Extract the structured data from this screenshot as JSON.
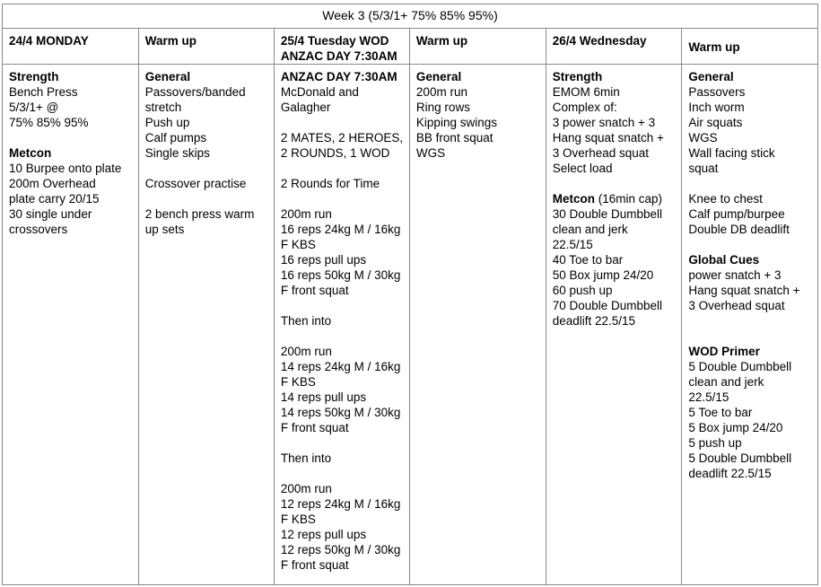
{
  "title": "Week 3 (5/3/1+ 75% 85% 95%)",
  "colors": {
    "border": "#8a8a8a",
    "text": "#000000",
    "background": "#ffffff"
  },
  "table": {
    "headers": [
      {
        "lines": [
          "24/4 MONDAY"
        ]
      },
      {
        "lines": [
          "Warm up"
        ]
      },
      {
        "lines": [
          "25/4 Tuesday WOD",
          "ANZAC DAY 7:30AM"
        ]
      },
      {
        "lines": [
          "Warm up"
        ]
      },
      {
        "lines": [
          "26/4 Wednesday"
        ]
      },
      {
        "lines": [
          "Warm up"
        ]
      }
    ],
    "cells": [
      [
        [
          {
            "t": "Strength",
            "b": true
          }
        ],
        [
          {
            "t": "Bench Press"
          }
        ],
        [
          {
            "t": "5/3/1+ @"
          }
        ],
        [
          {
            "t": "75% 85% 95%"
          }
        ],
        [],
        [
          {
            "t": "Metcon",
            "b": true
          }
        ],
        [
          {
            "t": "10 Burpee onto plate"
          }
        ],
        [
          {
            "t": "200m Overhead"
          }
        ],
        [
          {
            "t": "plate carry 20/15"
          }
        ],
        [
          {
            "t": "30 single under"
          }
        ],
        [
          {
            "t": "crossovers"
          }
        ]
      ],
      [
        [
          {
            "t": "General",
            "b": true
          }
        ],
        [
          {
            "t": "Passovers/banded"
          }
        ],
        [
          {
            "t": "stretch"
          }
        ],
        [
          {
            "t": "Push up"
          }
        ],
        [
          {
            "t": "Calf pumps"
          }
        ],
        [
          {
            "t": "Single skips"
          }
        ],
        [],
        [
          {
            "t": "Crossover practise"
          }
        ],
        [],
        [
          {
            "t": "2 bench press warm"
          }
        ],
        [
          {
            "t": "up sets"
          }
        ]
      ],
      [
        [
          {
            "t": "ANZAC DAY 7:30AM",
            "b": true
          }
        ],
        [
          {
            "t": "McDonald and"
          }
        ],
        [
          {
            "t": "Galagher"
          }
        ],
        [],
        [
          {
            "t": "2 MATES, 2 HEROES,"
          }
        ],
        [
          {
            "t": "2 ROUNDS, 1 WOD"
          }
        ],
        [],
        [
          {
            "t": "2 Rounds for Time"
          }
        ],
        [],
        [
          {
            "t": "200m run"
          }
        ],
        [
          {
            "t": "16 reps 24kg M / 16kg"
          }
        ],
        [
          {
            "t": "F KBS"
          }
        ],
        [
          {
            "t": "16 reps pull ups"
          }
        ],
        [
          {
            "t": "16 reps 50kg M / 30kg"
          }
        ],
        [
          {
            "t": "F front squat"
          }
        ],
        [],
        [
          {
            "t": "Then into"
          }
        ],
        [],
        [
          {
            "t": "200m run"
          }
        ],
        [
          {
            "t": "14 reps 24kg M / 16kg"
          }
        ],
        [
          {
            "t": "F KBS"
          }
        ],
        [
          {
            "t": "14 reps pull ups"
          }
        ],
        [
          {
            "t": "14 reps 50kg M / 30kg"
          }
        ],
        [
          {
            "t": "F front squat"
          }
        ],
        [],
        [
          {
            "t": "Then into"
          }
        ],
        [],
        [
          {
            "t": "200m run"
          }
        ],
        [
          {
            "t": "12 reps 24kg M / 16kg"
          }
        ],
        [
          {
            "t": "F KBS"
          }
        ],
        [
          {
            "t": "12 reps pull ups"
          }
        ],
        [
          {
            "t": "12 reps 50kg M / 30kg"
          }
        ],
        [
          {
            "t": "F front squat"
          }
        ]
      ],
      [
        [
          {
            "t": "General",
            "b": true
          }
        ],
        [
          {
            "t": "200m run"
          }
        ],
        [
          {
            "t": "Ring rows"
          }
        ],
        [
          {
            "t": "Kipping swings"
          }
        ],
        [
          {
            "t": "BB front squat"
          }
        ],
        [
          {
            "t": "WGS"
          }
        ]
      ],
      [
        [
          {
            "t": "Strength",
            "b": true
          }
        ],
        [
          {
            "t": "EMOM 6min"
          }
        ],
        [
          {
            "t": "Complex of:"
          }
        ],
        [
          {
            "t": "3 power snatch + 3"
          }
        ],
        [
          {
            "t": "Hang squat snatch +"
          }
        ],
        [
          {
            "t": "3 Overhead squat"
          }
        ],
        [
          {
            "t": "Select load"
          }
        ],
        [],
        [
          {
            "t": "Metcon",
            "b": true
          },
          {
            "t": " (16min cap)"
          }
        ],
        [
          {
            "t": "30 Double Dumbbell"
          }
        ],
        [
          {
            "t": "clean and jerk"
          }
        ],
        [
          {
            "t": "22.5/15"
          }
        ],
        [
          {
            "t": "40 Toe to bar"
          }
        ],
        [
          {
            "t": "50 Box jump 24/20"
          }
        ],
        [
          {
            "t": "60 push up"
          }
        ],
        [
          {
            "t": "70 Double Dumbbell"
          }
        ],
        [
          {
            "t": "deadlift 22.5/15"
          }
        ]
      ],
      [
        [
          {
            "t": "General",
            "b": true
          }
        ],
        [
          {
            "t": "Passovers"
          }
        ],
        [
          {
            "t": "Inch worm"
          }
        ],
        [
          {
            "t": "Air squats"
          }
        ],
        [
          {
            "t": "WGS"
          }
        ],
        [
          {
            "t": "Wall facing stick"
          }
        ],
        [
          {
            "t": "squat"
          }
        ],
        [],
        [
          {
            "t": "Knee to chest"
          }
        ],
        [
          {
            "t": "Calf pump/burpee"
          }
        ],
        [
          {
            "t": "Double DB deadlift"
          }
        ],
        [],
        [
          {
            "t": "Global Cues",
            "b": true
          }
        ],
        [
          {
            "t": "power snatch + 3"
          }
        ],
        [
          {
            "t": "Hang squat snatch +"
          }
        ],
        [
          {
            "t": "3 Overhead squat"
          }
        ],
        [],
        [],
        [
          {
            "t": "WOD Primer",
            "b": true
          }
        ],
        [
          {
            "t": "5 Double Dumbbell"
          }
        ],
        [
          {
            "t": "clean and jerk"
          }
        ],
        [
          {
            "t": "22.5/15"
          }
        ],
        [
          {
            "t": "5 Toe to bar"
          }
        ],
        [
          {
            "t": "5 Box jump 24/20"
          }
        ],
        [
          {
            "t": "5 push up"
          }
        ],
        [
          {
            "t": "5 Double Dumbbell"
          }
        ],
        [
          {
            "t": "deadlift 22.5/15"
          }
        ]
      ]
    ]
  }
}
